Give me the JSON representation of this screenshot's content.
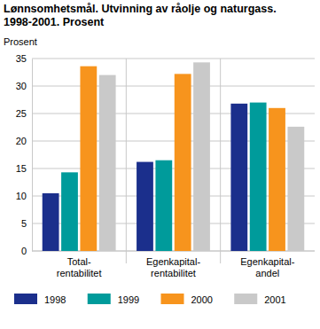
{
  "chart_data": {
    "type": "bar",
    "title": "Lønnsomhetsmål. Utvinning av råolje og naturgass. 1998-2001. Prosent",
    "y_label": "Prosent",
    "categories": [
      "Total-rentabilitet",
      "Egenkapital-rentabilitet",
      "Egenkapital-andel"
    ],
    "series": [
      {
        "name": "1998",
        "color": "#1b2f8c",
        "values": [
          10.5,
          16.2,
          26.8
        ]
      },
      {
        "name": "1999",
        "color": "#009b9b",
        "values": [
          14.3,
          16.5,
          27.0
        ]
      },
      {
        "name": "2000",
        "color": "#f7941d",
        "values": [
          33.6,
          32.2,
          26.0
        ]
      },
      {
        "name": "2001",
        "color": "#c9c9c9",
        "values": [
          32.0,
          34.3,
          22.6
        ]
      }
    ],
    "ylim": [
      0,
      35
    ],
    "yticks": [
      0,
      5,
      10,
      15,
      20,
      25,
      30,
      35
    ],
    "grid": true,
    "legend": "bottom"
  }
}
